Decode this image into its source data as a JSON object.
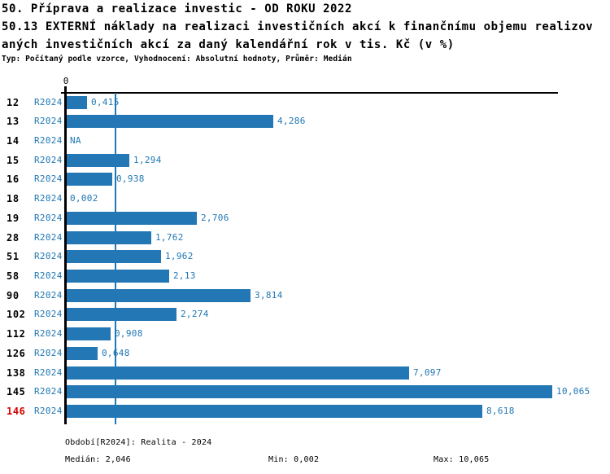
{
  "header": {
    "title_line1": "50. Příprava a realizace investic - OD ROKU 2022",
    "title_line2": "50.13 EXTERNÍ náklady na realizaci investičních akcí k finančnímu objemu realizov",
    "title_line3": "aných investičních akcí za daný kalendářní rok v tis. Kč (v %)",
    "subtitle": "Typ: Počítaný podle vzorce, Vyhodnocení: Absolutní hodnoty, Průměr: Medián"
  },
  "chart_data": {
    "type": "bar",
    "orientation": "horizontal",
    "categories": [
      "12",
      "13",
      "14",
      "15",
      "16",
      "18",
      "19",
      "28",
      "51",
      "58",
      "90",
      "102",
      "112",
      "126",
      "138",
      "145",
      "146"
    ],
    "series_label": "R2024",
    "values": [
      0.415,
      4.286,
      null,
      1.294,
      0.938,
      0.002,
      2.706,
      1.762,
      1.962,
      2.13,
      3.814,
      2.274,
      0.908,
      0.648,
      7.097,
      10.065,
      8.618
    ],
    "value_labels": [
      "0,415",
      "4,286",
      "NA",
      "1,294",
      "0,938",
      "0,002",
      "2,706",
      "1,762",
      "1,962",
      "2,13",
      "3,814",
      "2,274",
      "0,908",
      "0,648",
      "7,097",
      "10,065",
      "8,618"
    ],
    "highlighted_category": "146",
    "axis_zero_label": "0",
    "xlim": [
      0,
      10.2
    ],
    "median_line_value": 2.046,
    "grid": false,
    "legend": false,
    "colors": {
      "bar": "#2377b4",
      "accent_text": "#1f77b4",
      "highlight_text": "#d40000",
      "axis": "#000000"
    }
  },
  "footer": {
    "period_line": "Období[R2024]: Realita - 2024",
    "median": "Medián: 2,046",
    "min": "Min: 0,002",
    "max": "Max: 10,065"
  }
}
